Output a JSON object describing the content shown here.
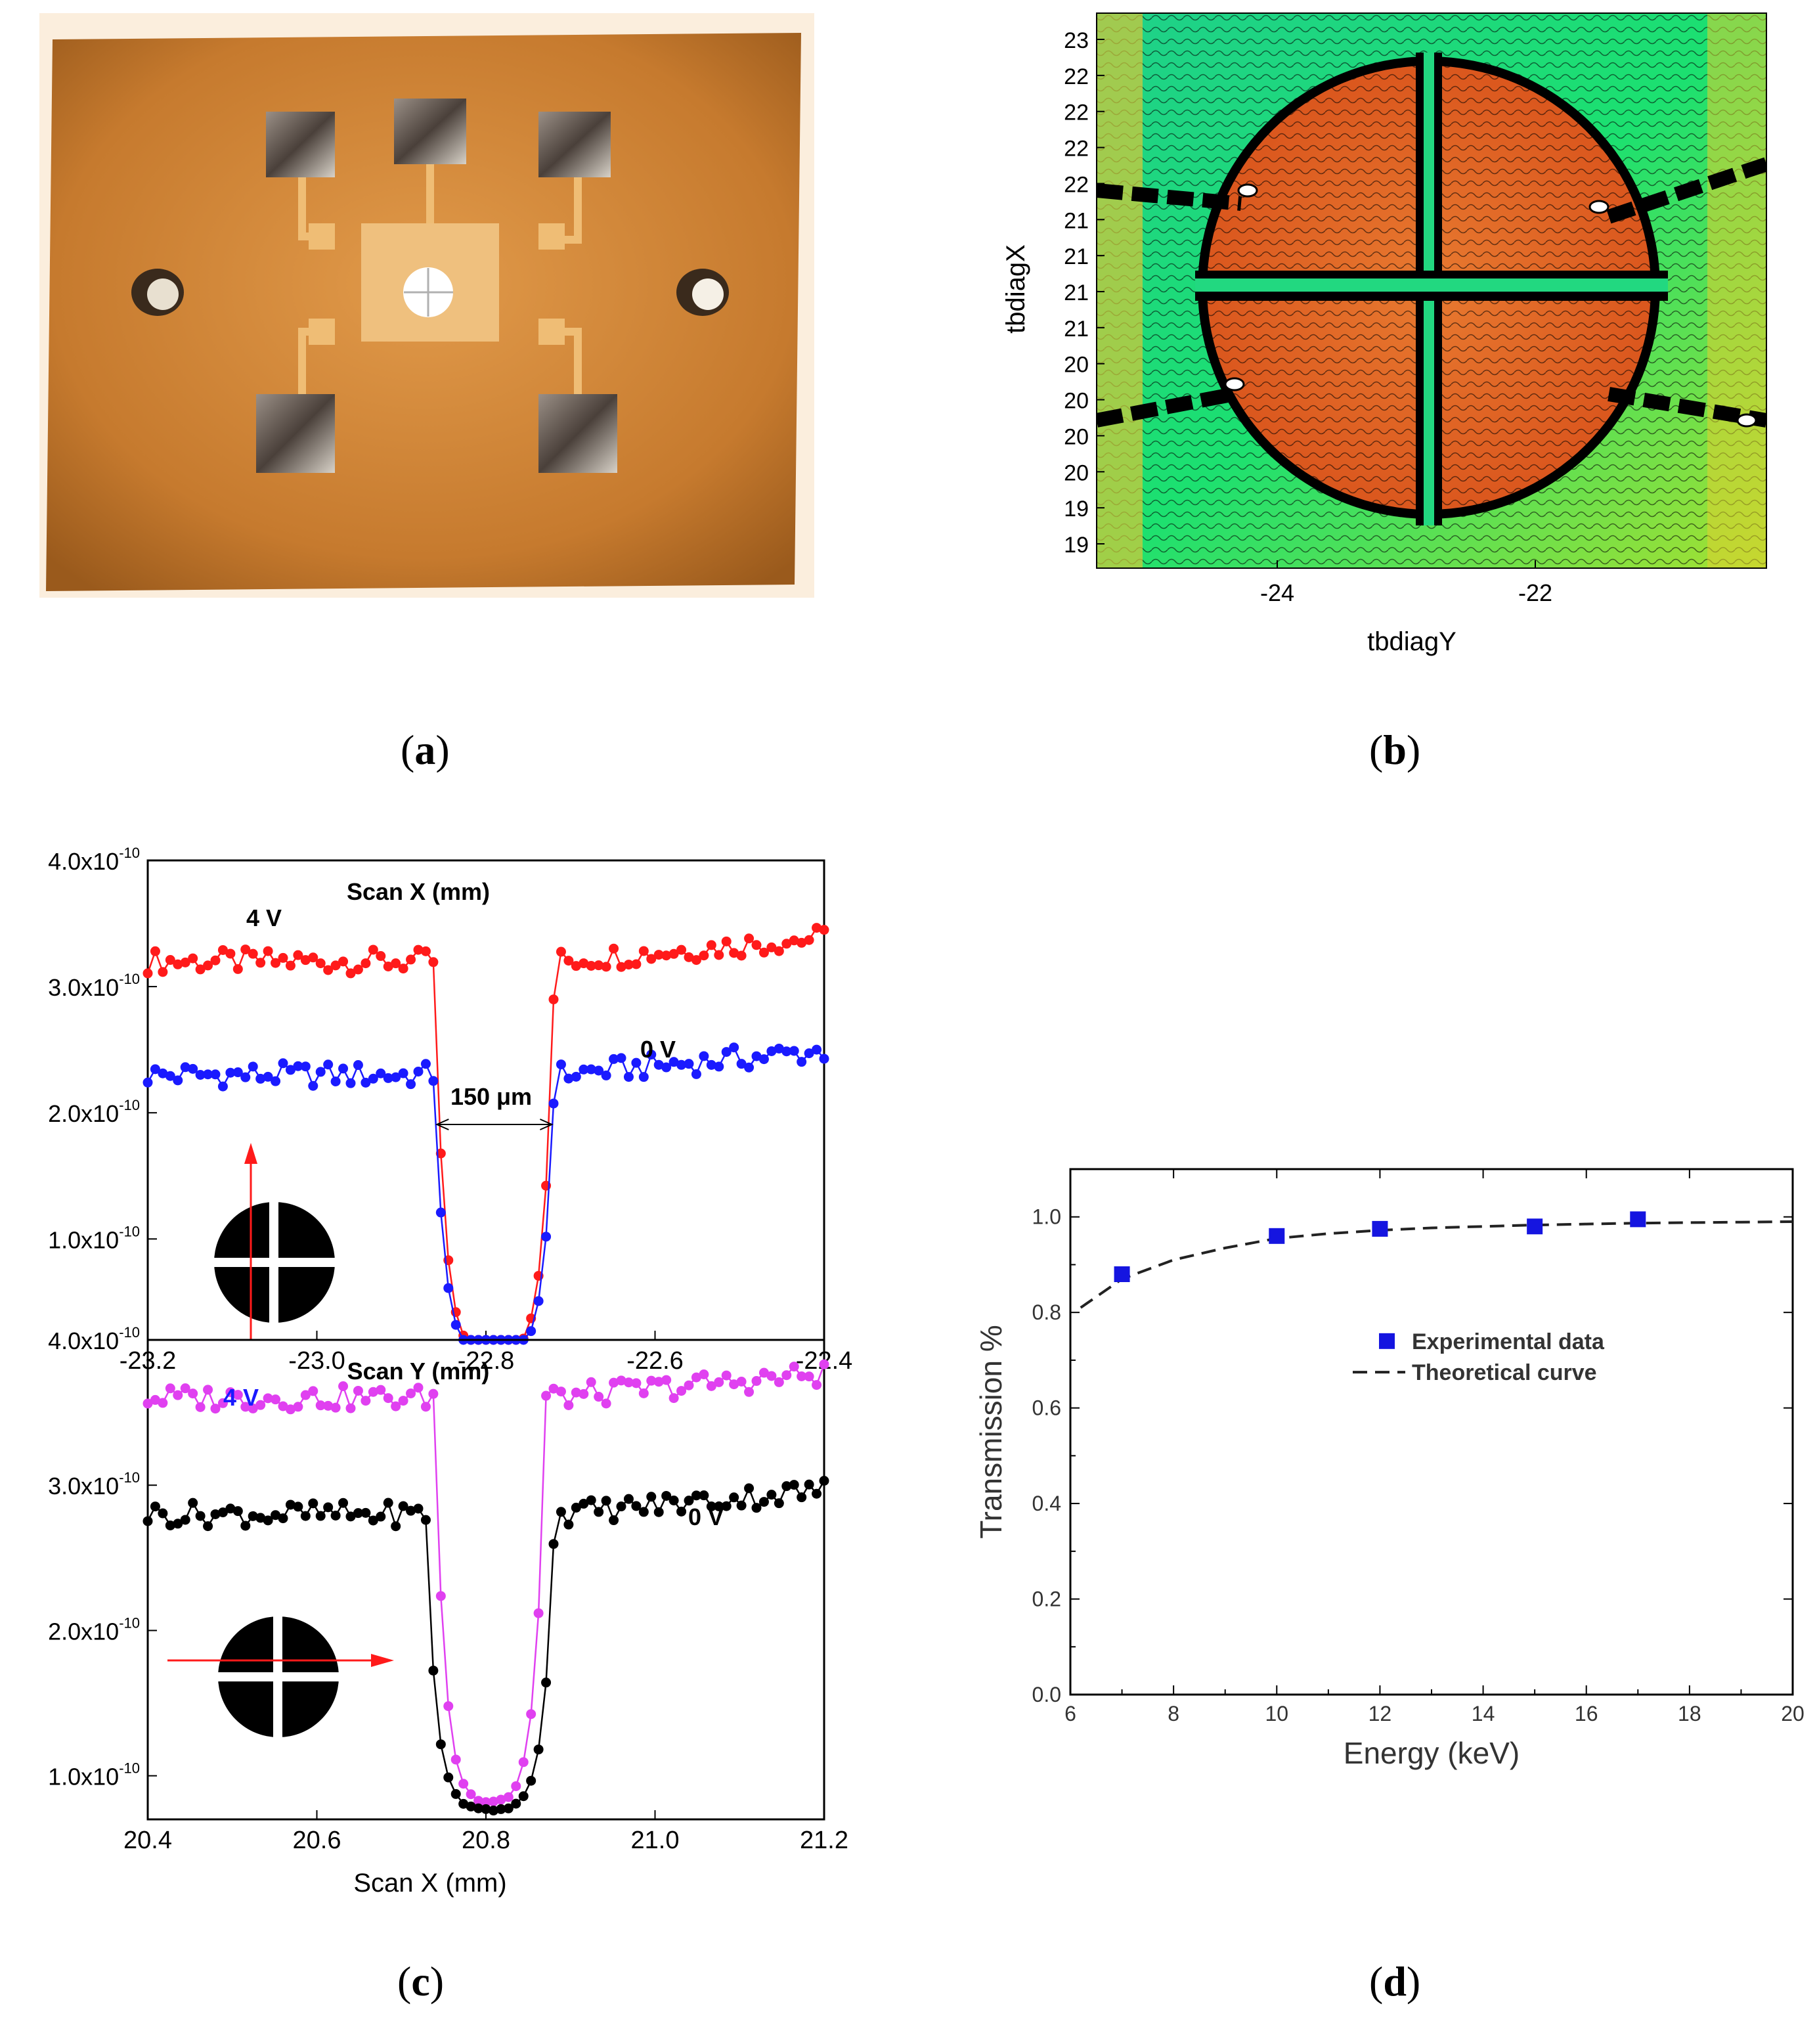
{
  "captions": {
    "a": {
      "open": "(",
      "letter": "a",
      "close": ")"
    },
    "b": {
      "open": "(",
      "letter": "b",
      "close": ")"
    },
    "c": {
      "open": "(",
      "letter": "c",
      "close": ")"
    },
    "d": {
      "open": "(",
      "letter": "d",
      "close": ")"
    }
  },
  "colors": {
    "board": "#c8772c",
    "gold": "#e9b36a",
    "red": "#ff1a1a",
    "blue": "#1a1aff",
    "magenta": "#e040f0",
    "black": "#000000",
    "square": "#1515e0"
  },
  "panel_b": {
    "xlabel": "tbdiagY",
    "ylabel": "tbdiagX",
    "xticks": [
      "-24",
      "-22"
    ],
    "yticks": [
      "23",
      "22",
      "22",
      "22",
      "22",
      "21",
      "21",
      "21",
      "21",
      "20",
      "20",
      "20",
      "20",
      "19",
      "19"
    ]
  },
  "chart_data": [
    {
      "id": "c-top",
      "type": "scatter",
      "title": "Scan X (mm)",
      "xlim": [
        -23.2,
        -22.4
      ],
      "ylim": [
        2e-11,
        4e-10
      ],
      "xticks": [
        "-23.2",
        "-23.0",
        "-22.8",
        "-22.6",
        "-22.4"
      ],
      "yticks": [
        {
          "mant": "4.0x10",
          "exp": "-10"
        },
        {
          "mant": "3.0x10",
          "exp": "-10"
        },
        {
          "mant": "2.0x10",
          "exp": "-10"
        },
        {
          "mant": "1.0x10",
          "exp": "-10"
        }
      ],
      "labels": {
        "high": "4 V",
        "low": "0 V",
        "gap": "150 μm"
      },
      "series": [
        {
          "name": "4 V",
          "color": "#ff1a1a",
          "plateau": 3.2e-10,
          "base": 5e-12,
          "fall": -22.86,
          "rise": -22.72
        },
        {
          "name": "0 V",
          "color": "#1a1aff",
          "plateau": 2.3e-10,
          "base": 3e-12,
          "fall": -22.86,
          "rise": -22.72
        }
      ]
    },
    {
      "id": "c-bottom",
      "type": "scatter",
      "title": "Scan Y (mm)",
      "xlabel": "Scan X (mm)",
      "xlim": [
        20.4,
        21.2
      ],
      "ylim": [
        7e-11,
        4e-10
      ],
      "xticks": [
        "20.4",
        "20.6",
        "20.8",
        "21.0",
        "21.2"
      ],
      "yticks": [
        {
          "mant": "4.0x10",
          "exp": "-10"
        },
        {
          "mant": "3.0x10",
          "exp": "-10"
        },
        {
          "mant": "2.0x10",
          "exp": "-10"
        },
        {
          "mant": "1.0x10",
          "exp": "-10"
        }
      ],
      "labels": {
        "high": "4 V",
        "low": "0 V"
      },
      "series": [
        {
          "name": "4 V",
          "color": "#e040f0",
          "plateau": 3.6e-10,
          "base": 7.8e-11,
          "fall": 20.74,
          "rise": 20.87
        },
        {
          "name": "0 V",
          "color": "#000000",
          "plateau": 2.8e-10,
          "base": 7.5e-11,
          "fall": 20.73,
          "rise": 20.88
        }
      ]
    },
    {
      "id": "d",
      "type": "scatter",
      "xlabel": "Energy (keV)",
      "ylabel": "Transmission %",
      "xlim": [
        6,
        20
      ],
      "ylim": [
        0.0,
        1.1
      ],
      "xticks": [
        "6",
        "8",
        "10",
        "12",
        "14",
        "16",
        "18",
        "20"
      ],
      "yticks": [
        "0.0",
        "0.2",
        "0.4",
        "0.6",
        "0.8",
        "1.0"
      ],
      "experimental": {
        "name": "Experimental data",
        "x": [
          7,
          10,
          12,
          15,
          17
        ],
        "y": [
          0.88,
          0.96,
          0.975,
          0.98,
          0.995
        ]
      },
      "theoretical": {
        "name": "Theoretical curve",
        "x": [
          6.2,
          7,
          8,
          9,
          10,
          11,
          12,
          13,
          14,
          15,
          16,
          17,
          18,
          19,
          20
        ],
        "y": [
          0.81,
          0.87,
          0.91,
          0.935,
          0.955,
          0.965,
          0.972,
          0.977,
          0.98,
          0.983,
          0.985,
          0.987,
          0.988,
          0.989,
          0.99
        ]
      }
    }
  ]
}
